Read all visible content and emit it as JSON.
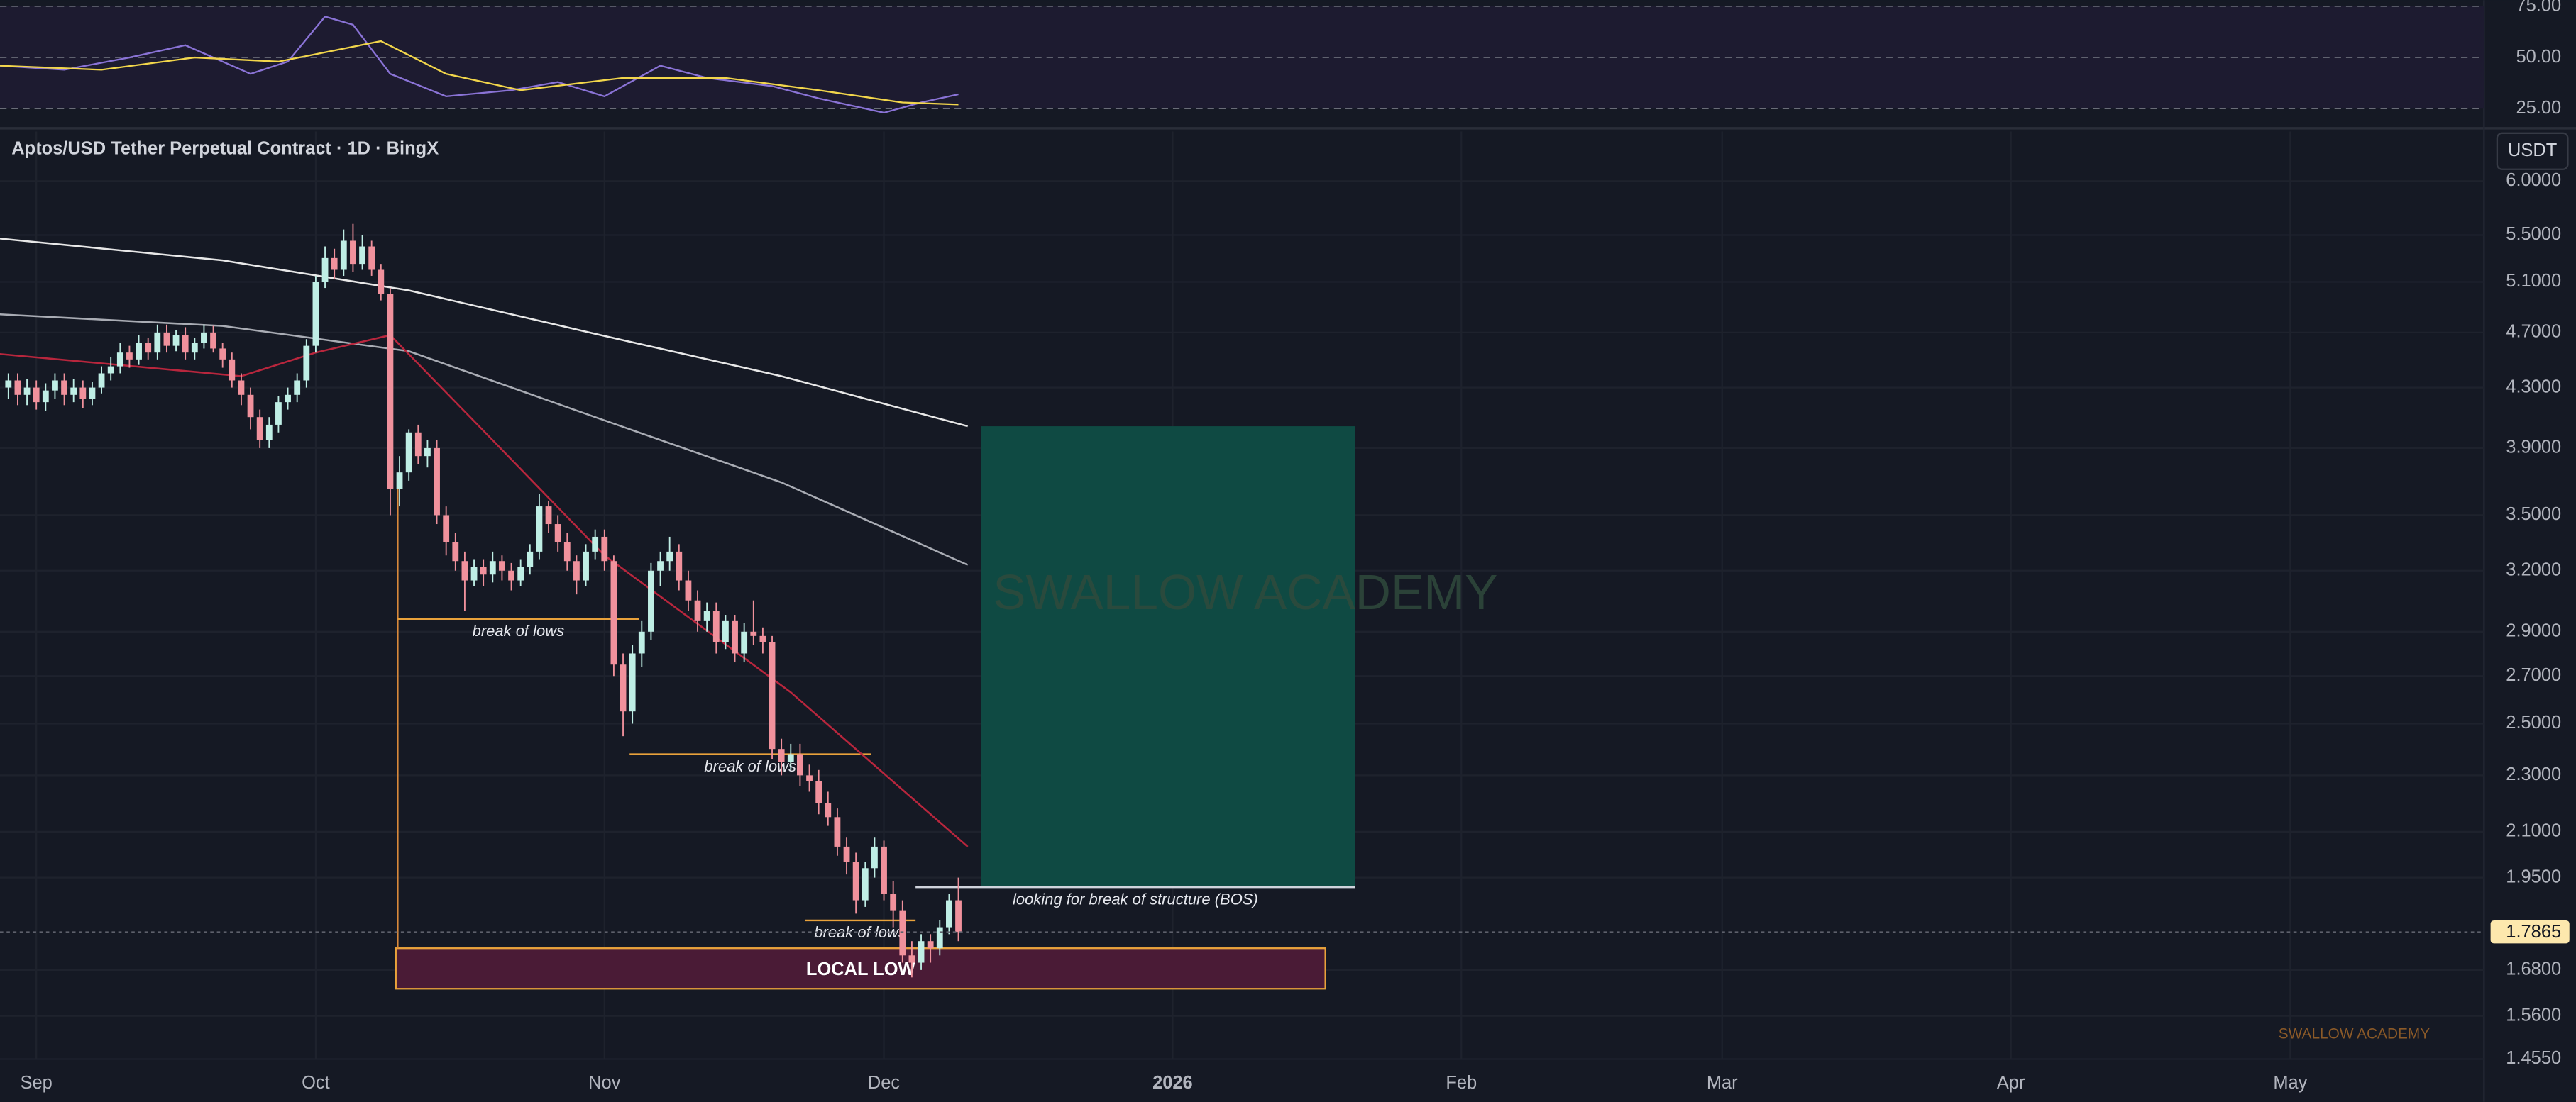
{
  "header": {
    "title": "Aptos/USD Tether Perpetual Contract · 1D · BingX",
    "currency": "USDT"
  },
  "chart_data": {
    "type": "candlestick",
    "x": [
      -3,
      -2,
      -1,
      0,
      1,
      2,
      3,
      4,
      5,
      6,
      7,
      8,
      9,
      10,
      11,
      12,
      13,
      14,
      15,
      16,
      17,
      18,
      19,
      20,
      21,
      22,
      23,
      24,
      25,
      26,
      27,
      28,
      29,
      30,
      31,
      32,
      33,
      34,
      35,
      36,
      37,
      38,
      39,
      40,
      41,
      42,
      43,
      44,
      45,
      46,
      47,
      48,
      49,
      50,
      51,
      52,
      53,
      54,
      55,
      56,
      57,
      58,
      59,
      60,
      61,
      62,
      63,
      64,
      65,
      66,
      67,
      68,
      69,
      70,
      71,
      72,
      73,
      74,
      75,
      76,
      77,
      78,
      79,
      80,
      81,
      82,
      83,
      84,
      85,
      86,
      87,
      88,
      89,
      90,
      91,
      92,
      93,
      94,
      95,
      96,
      97,
      98,
      99
    ],
    "open": [
      4.3,
      4.35,
      4.25,
      4.3,
      4.2,
      4.28,
      4.35,
      4.25,
      4.3,
      4.22,
      4.3,
      4.4,
      4.45,
      4.55,
      4.5,
      4.62,
      4.55,
      4.7,
      4.6,
      4.68,
      4.55,
      4.62,
      4.7,
      4.58,
      4.5,
      4.35,
      4.25,
      4.1,
      3.95,
      4.05,
      4.2,
      4.25,
      4.35,
      4.6,
      5.1,
      5.3,
      5.2,
      5.45,
      5.25,
      5.4,
      5.2,
      5.0,
      3.65,
      3.75,
      4.0,
      3.85,
      3.9,
      3.5,
      3.35,
      3.25,
      3.15,
      3.22,
      3.18,
      3.25,
      3.2,
      3.15,
      3.22,
      3.3,
      3.55,
      3.45,
      3.35,
      3.25,
      3.15,
      3.3,
      3.38,
      3.25,
      2.75,
      2.55,
      2.8,
      2.9,
      3.2,
      3.25,
      3.3,
      3.15,
      3.05,
      2.95,
      3.0,
      2.85,
      2.95,
      2.8,
      2.9,
      2.88,
      2.85,
      2.4,
      2.35,
      2.38,
      2.3,
      2.28,
      2.2,
      2.15,
      2.05,
      2.0,
      1.88,
      1.98,
      2.05,
      1.9,
      1.85,
      1.72,
      1.7,
      1.76,
      1.74,
      1.8,
      1.88
    ],
    "high": [
      4.4,
      4.4,
      4.36,
      4.35,
      4.33,
      4.4,
      4.4,
      4.36,
      4.35,
      4.34,
      4.45,
      4.52,
      4.62,
      4.6,
      4.68,
      4.66,
      4.76,
      4.76,
      4.72,
      4.74,
      4.66,
      4.76,
      4.75,
      4.62,
      4.55,
      4.4,
      4.3,
      4.15,
      4.1,
      4.24,
      4.3,
      4.4,
      4.65,
      5.15,
      5.4,
      5.38,
      5.55,
      5.6,
      5.5,
      5.45,
      5.25,
      5.05,
      3.85,
      4.02,
      4.05,
      3.95,
      3.95,
      3.55,
      3.4,
      3.3,
      3.26,
      3.26,
      3.3,
      3.28,
      3.24,
      3.26,
      3.34,
      3.62,
      3.58,
      3.5,
      3.4,
      3.28,
      3.34,
      3.42,
      3.42,
      3.28,
      2.8,
      2.84,
      2.95,
      3.24,
      3.3,
      3.38,
      3.34,
      3.2,
      3.1,
      3.04,
      3.04,
      2.98,
      2.98,
      2.94,
      3.05,
      2.92,
      2.88,
      2.44,
      2.42,
      2.42,
      2.34,
      2.32,
      2.24,
      2.18,
      2.08,
      2.03,
      2.0,
      2.08,
      2.07,
      1.94,
      1.88,
      1.76,
      1.78,
      1.78,
      1.82,
      1.9,
      1.95
    ],
    "low": [
      4.22,
      4.18,
      4.18,
      4.15,
      4.14,
      4.22,
      4.18,
      4.2,
      4.16,
      4.18,
      4.26,
      4.35,
      4.4,
      4.44,
      4.46,
      4.5,
      4.5,
      4.55,
      4.56,
      4.5,
      4.5,
      4.58,
      4.55,
      4.44,
      4.3,
      4.18,
      4.02,
      3.9,
      3.9,
      4.0,
      4.15,
      4.2,
      4.3,
      4.55,
      5.05,
      5.12,
      5.15,
      5.18,
      5.2,
      5.15,
      4.95,
      3.5,
      3.55,
      3.7,
      3.8,
      3.78,
      3.45,
      3.28,
      3.2,
      3.0,
      3.12,
      3.12,
      3.14,
      3.15,
      3.1,
      3.12,
      3.18,
      3.26,
      3.4,
      3.3,
      3.2,
      3.08,
      3.12,
      3.26,
      3.2,
      2.7,
      2.45,
      2.5,
      2.74,
      2.86,
      3.12,
      3.2,
      3.1,
      3.0,
      2.9,
      2.9,
      2.8,
      2.82,
      2.76,
      2.76,
      2.84,
      2.8,
      2.36,
      2.3,
      2.32,
      2.26,
      2.24,
      2.16,
      2.12,
      2.02,
      1.96,
      1.84,
      1.86,
      1.95,
      1.88,
      1.8,
      1.7,
      1.66,
      1.68,
      1.7,
      1.72,
      1.78,
      1.76
    ],
    "close": [
      4.35,
      4.25,
      4.3,
      4.2,
      4.28,
      4.35,
      4.25,
      4.3,
      4.22,
      4.3,
      4.4,
      4.45,
      4.55,
      4.5,
      4.62,
      4.55,
      4.7,
      4.6,
      4.68,
      4.55,
      4.62,
      4.7,
      4.58,
      4.5,
      4.35,
      4.25,
      4.1,
      3.95,
      4.05,
      4.2,
      4.25,
      4.35,
      4.6,
      5.1,
      5.3,
      5.2,
      5.45,
      5.25,
      5.4,
      5.2,
      5.0,
      3.65,
      3.75,
      4.0,
      3.85,
      3.9,
      3.5,
      3.35,
      3.25,
      3.15,
      3.22,
      3.18,
      3.25,
      3.2,
      3.15,
      3.22,
      3.3,
      3.55,
      3.45,
      3.35,
      3.25,
      3.15,
      3.3,
      3.38,
      3.25,
      2.75,
      2.55,
      2.8,
      2.9,
      3.2,
      3.25,
      3.3,
      3.15,
      3.05,
      2.95,
      3.0,
      2.85,
      2.95,
      2.8,
      2.9,
      2.88,
      2.85,
      2.4,
      2.35,
      2.38,
      2.3,
      2.28,
      2.2,
      2.15,
      2.05,
      2.0,
      1.88,
      1.98,
      2.05,
      1.9,
      1.85,
      1.72,
      1.7,
      1.76,
      1.74,
      1.8,
      1.88,
      1.7865
    ],
    "up_color": "#bfeee5",
    "down_color": "#f0919c",
    "xlim": [
      -3.9,
      262.8
    ],
    "xticks": [
      {
        "value": 0,
        "label": "Sep"
      },
      {
        "value": 30,
        "label": "Oct"
      },
      {
        "value": 61,
        "label": "Nov"
      },
      {
        "value": 91,
        "label": "Dec"
      },
      {
        "value": 122,
        "label": "2026"
      },
      {
        "value": 153,
        "label": "Feb"
      },
      {
        "value": 181,
        "label": "Mar"
      },
      {
        "value": 212,
        "label": "Apr"
      },
      {
        "value": 242,
        "label": "May"
      }
    ],
    "ylim": [
      1.455,
      6.5
    ],
    "log_scale": true,
    "yticks": [
      {
        "value": 6,
        "label": "6.0000"
      },
      {
        "value": 5.5,
        "label": "5.5000"
      },
      {
        "value": 5.1,
        "label": "5.1000"
      },
      {
        "value": 4.7,
        "label": "4.7000"
      },
      {
        "value": 4.3,
        "label": "4.3000"
      },
      {
        "value": 3.9,
        "label": "3.9000"
      },
      {
        "value": 3.5,
        "label": "3.5000"
      },
      {
        "value": 3.2,
        "label": "3.2000"
      },
      {
        "value": 2.9,
        "label": "2.9000"
      },
      {
        "value": 2.7,
        "label": "2.7000"
      },
      {
        "value": 2.5,
        "label": "2.5000"
      },
      {
        "value": 2.3,
        "label": "2.3000"
      },
      {
        "value": 2.1,
        "label": "2.1000"
      },
      {
        "value": 1.95,
        "label": "1.9500"
      },
      {
        "value": 1.68,
        "label": "1.6800"
      },
      {
        "value": 1.56,
        "label": "1.5600"
      },
      {
        "value": 1.455,
        "label": "1.4550"
      }
    ],
    "grid": true,
    "last_price": 1.7865,
    "moving_averages": [
      {
        "color": "#e8e8e8",
        "x": [
          -4,
          20,
          40,
          60,
          80,
          100
        ],
        "values": [
          5.47,
          5.28,
          5.03,
          4.69,
          4.38,
          4.04
        ]
      },
      {
        "color": "#a9acb4",
        "x": [
          -4,
          20,
          40,
          60,
          80,
          100
        ],
        "values": [
          4.84,
          4.75,
          4.56,
          4.1,
          3.69,
          3.23
        ]
      },
      {
        "color": "#b8263d",
        "x": [
          -4,
          22,
          30,
          38,
          49,
          61,
          81,
          100
        ],
        "values": [
          4.54,
          4.38,
          4.55,
          4.68,
          3.95,
          3.28,
          2.63,
          2.05
        ]
      }
    ],
    "zones": [
      {
        "color": "#0f4a43",
        "x": [
          101.4,
          141.6
        ],
        "y": [
          4.04,
          1.92
        ]
      },
      {
        "label": "LOCAL LOW",
        "color": "#4a1b36",
        "x": [
          38.6,
          138.4
        ],
        "y": [
          1.74,
          1.63
        ]
      }
    ],
    "levels": [
      {
        "label": "break of lows",
        "value": 2.96,
        "x": [
          38.8,
          64.7
        ]
      },
      {
        "label": "break of lows",
        "value": 2.38,
        "x": [
          63.7,
          89.6
        ]
      },
      {
        "label": "break of lows",
        "value": 1.82,
        "x": [
          82.5,
          94.4
        ]
      },
      {
        "label": "looking for break of structure (BOS)",
        "value": 1.92,
        "x": [
          94.4,
          141.6
        ]
      }
    ],
    "drop_line": {
      "x": 38.8,
      "y": [
        3.65,
        1.74
      ]
    },
    "watermark": "SWALLOW ACADEMY",
    "rsi": {
      "ylim": [
        17,
        78
      ],
      "yticks": [
        {
          "value": 75,
          "label": "75.00"
        },
        {
          "value": 50,
          "label": "50.00"
        },
        {
          "value": 25,
          "label": "25.00"
        }
      ],
      "series": [
        {
          "color": "#8a73d6",
          "x": [
            -4,
            3,
            10,
            16,
            23,
            27,
            31,
            34,
            38,
            44,
            51,
            56,
            61,
            67,
            72,
            79,
            84,
            91,
            95,
            99
          ],
          "values": [
            46,
            44,
            50,
            56,
            42,
            48,
            70,
            66,
            42,
            31,
            34,
            38,
            31,
            46,
            40,
            36,
            30,
            23,
            28,
            32
          ]
        },
        {
          "color": "#f2d64b",
          "x": [
            -4,
            7,
            17,
            26,
            37,
            44,
            52,
            63,
            74,
            84,
            93,
            99
          ],
          "values": [
            46,
            44,
            50,
            48,
            58,
            42,
            34,
            40,
            40,
            34,
            28,
            27
          ]
        }
      ]
    }
  }
}
